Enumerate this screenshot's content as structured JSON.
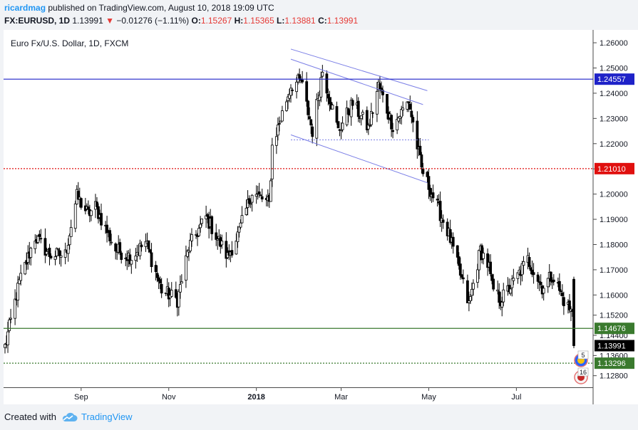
{
  "header": {
    "author": "ricardmag",
    "published": "published on TradingView.com, August 10, 2018 19:09 UTC",
    "symbol": "FX:EURUSD, 1D",
    "last": "1.13991",
    "change": "−0.01276 (−1.11%)",
    "ohlc": [
      {
        "label": "O:",
        "value": "1.15267"
      },
      {
        "label": "H:",
        "value": "1.15365"
      },
      {
        "label": "L:",
        "value": "1.13881"
      },
      {
        "label": "C:",
        "value": "1.13991"
      }
    ]
  },
  "footer": {
    "created_with": "Created with",
    "brand": "TradingView"
  },
  "colors": {
    "up": "#ffffff",
    "down": "#000000",
    "blue_line": "#1e22c8",
    "red_line": "#e0100f",
    "green_line": "#3a7a2e",
    "channel": "#7b7fe6"
  },
  "chart_data": {
    "type": "candlestick",
    "title": "Euro Fx/U.S. Dollar, 1D, FXCM",
    "x_labels": [
      "Sep",
      "Nov",
      "2018",
      "Mar",
      "May",
      "Jul"
    ],
    "y_ticks": [
      1.26,
      1.25,
      1.24,
      1.23,
      1.22,
      1.21,
      1.2,
      1.19,
      1.18,
      1.17,
      1.16,
      1.152,
      1.144,
      1.136,
      1.128
    ],
    "y_tick_labels": [
      "1.26000",
      "1.25000",
      "1.24000",
      "1.23000",
      "1.22000",
      "1.21000",
      "1.20000",
      "1.19000",
      "1.18000",
      "1.17000",
      "1.16000",
      "1.15200",
      "1.14400",
      "1.13600",
      "1.12800"
    ],
    "ylim": [
      1.1234,
      1.2651
    ],
    "date_range": [
      "2017-07-10",
      "2018-08-10"
    ],
    "horizontal_levels": [
      {
        "value": 1.24557,
        "label": "1.24557",
        "color": "#1e22c8",
        "style": "solid"
      },
      {
        "value": 1.2101,
        "label": "1.21010",
        "color": "#e0100f",
        "style": "dotted"
      },
      {
        "value": 1.14676,
        "label": "1.14676",
        "color": "#3a7a2e",
        "style": "solid"
      },
      {
        "value": 1.13296,
        "label": "1.13296",
        "color": "#3a7a2e",
        "style": "dotted"
      }
    ],
    "current_price": {
      "value": 1.13991,
      "label": "1.13991"
    },
    "close_path": [
      [
        "2017-07-10",
        1.1395
      ],
      [
        "2017-07-20",
        1.165
      ],
      [
        "2017-07-31",
        1.183
      ],
      [
        "2017-08-10",
        1.176
      ],
      [
        "2017-08-21",
        1.176
      ],
      [
        "2017-08-29",
        1.199
      ],
      [
        "2017-09-06",
        1.192
      ],
      [
        "2017-09-11",
        1.195
      ],
      [
        "2017-09-25",
        1.178
      ],
      [
        "2017-10-06",
        1.175
      ],
      [
        "2017-10-16",
        1.181
      ],
      [
        "2017-10-27",
        1.162
      ],
      [
        "2017-11-07",
        1.158
      ],
      [
        "2017-11-15",
        1.179
      ],
      [
        "2017-11-27",
        1.191
      ],
      [
        "2017-12-12",
        1.175
      ],
      [
        "2017-12-20",
        1.185
      ],
      [
        "2017-12-29",
        1.201
      ],
      [
        "2018-01-10",
        1.196
      ],
      [
        "2018-01-12",
        1.219
      ],
      [
        "2018-01-25",
        1.243
      ],
      [
        "2018-02-01",
        1.245
      ],
      [
        "2018-02-09",
        1.225
      ],
      [
        "2018-02-16",
        1.249
      ],
      [
        "2018-02-27",
        1.225
      ],
      [
        "2018-03-09",
        1.236
      ],
      [
        "2018-03-20",
        1.226
      ],
      [
        "2018-03-27",
        1.243
      ],
      [
        "2018-04-06",
        1.227
      ],
      [
        "2018-04-17",
        1.237
      ],
      [
        "2018-04-26",
        1.21
      ],
      [
        "2018-05-07",
        1.195
      ],
      [
        "2018-05-15",
        1.184
      ],
      [
        "2018-05-29",
        1.156
      ],
      [
        "2018-06-06",
        1.178
      ],
      [
        "2018-06-12",
        1.171
      ],
      [
        "2018-06-14",
        1.163
      ],
      [
        "2018-06-20",
        1.158
      ],
      [
        "2018-06-29",
        1.165
      ],
      [
        "2018-07-09",
        1.174
      ],
      [
        "2018-07-19",
        1.163
      ],
      [
        "2018-07-26",
        1.168
      ],
      [
        "2018-08-03",
        1.158
      ],
      [
        "2018-08-09",
        1.1527
      ],
      [
        "2018-08-10",
        1.1399
      ]
    ],
    "trend_channel": [
      {
        "from": [
          "2018-01-25",
          1.2575
        ],
        "to": [
          "2018-04-30",
          1.241
        ]
      },
      {
        "from": [
          "2018-01-25",
          1.2535
        ],
        "to": [
          "2018-04-27",
          1.2355
        ]
      },
      {
        "from": [
          "2018-01-25",
          1.2235
        ],
        "to": [
          "2018-04-30",
          1.2045
        ]
      }
    ],
    "support_marker": {
      "value": 1.2215,
      "from": "2018-01-25",
      "to": "2018-05-01"
    },
    "event_badges": [
      "5",
      "16"
    ]
  }
}
